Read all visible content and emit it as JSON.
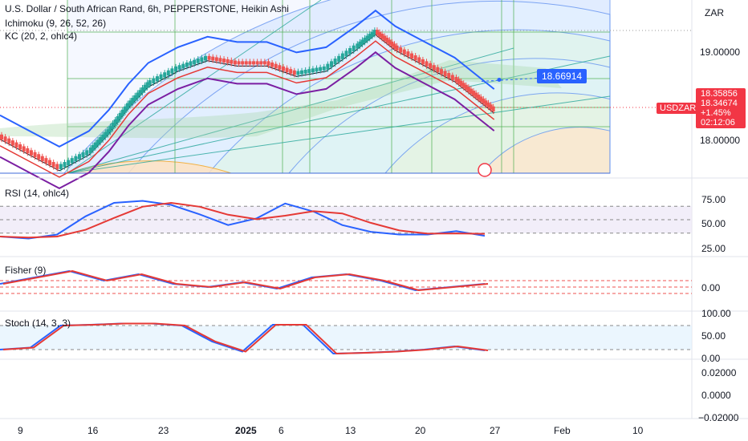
{
  "header": {
    "title": "U.S. Dollar / South African Rand, 6h, PEPPERSTONE, Heikin Ashi",
    "ichimoku_label": "Ichimoku (9, 26, 52, 26)",
    "kc_label": "KC (20, 2, ohlc4)"
  },
  "price_axis": {
    "currency": "ZAR",
    "ticks": [
      "19.00000",
      "18.00000"
    ],
    "symbol_tag": "USDZAR",
    "price_tag": {
      "bid": "18.35856",
      "last": "18.34674",
      "change": "+1.45%",
      "countdown": "02:12:06"
    },
    "target_label": "18.66914"
  },
  "panes": {
    "rsi": {
      "label": "RSI (14, ohlc4)",
      "ticks": [
        "75.00",
        "50.00",
        "25.00"
      ]
    },
    "fisher": {
      "label": "Fisher (9)",
      "ticks": [
        "0.00"
      ]
    },
    "stoch": {
      "label": "Stoch (14, 3, 3)",
      "ticks": [
        "100.00",
        "50.00",
        "0.00"
      ]
    },
    "extra": {
      "ticks": [
        "0.02000",
        "0.0000",
        "−0.02000"
      ]
    }
  },
  "time_axis": {
    "ticks": [
      "9",
      "16",
      "23",
      "2025",
      "6",
      "13",
      "20",
      "27",
      "Feb",
      "10"
    ]
  },
  "colors": {
    "ha_up": "#26a69a",
    "ha_down": "#ef5350",
    "kc_upper": "#2962ff",
    "kc_lower": "#7b1fa2",
    "kc_basis": "#131722",
    "conversion": "#e53935",
    "rsi_line": "#2962ff",
    "rsi_ma": "#e53935",
    "price_tag": "#f23645",
    "target_tag": "#2962ff"
  },
  "chart_data": {
    "type": "candlestick",
    "title": "U.S. Dollar / South African Rand, 6h, PEPPERSTONE, Heikin Ashi",
    "y_unit": "ZAR",
    "ylim_main": [
      17.7,
      19.4
    ],
    "price_series": [
      {
        "date": "2024-12-06",
        "close": 18.1
      },
      {
        "date": "2024-12-09",
        "close": 17.95
      },
      {
        "date": "2024-12-12",
        "close": 17.8
      },
      {
        "date": "2024-12-15",
        "close": 17.95
      },
      {
        "date": "2024-12-17",
        "close": 18.15
      },
      {
        "date": "2024-12-19",
        "close": 18.4
      },
      {
        "date": "2024-12-21",
        "close": 18.6
      },
      {
        "date": "2024-12-24",
        "close": 18.75
      },
      {
        "date": "2024-12-27",
        "close": 18.85
      },
      {
        "date": "2024-12-30",
        "close": 18.8
      },
      {
        "date": "2025-01-02",
        "close": 18.8
      },
      {
        "date": "2025-01-05",
        "close": 18.7
      },
      {
        "date": "2025-01-08",
        "close": 18.75
      },
      {
        "date": "2025-01-11",
        "close": 18.95
      },
      {
        "date": "2025-01-13",
        "close": 19.1
      },
      {
        "date": "2025-01-15",
        "close": 18.95
      },
      {
        "date": "2025-01-18",
        "close": 18.8
      },
      {
        "date": "2025-01-21",
        "close": 18.65
      },
      {
        "date": "2025-01-23",
        "close": 18.5
      },
      {
        "date": "2025-01-25",
        "close": 18.35
      }
    ],
    "current_price": 18.34674,
    "target_price": 18.66914,
    "rsi": {
      "ylim": [
        0,
        100
      ],
      "levels": [
        70,
        50,
        30
      ],
      "values": [
        25,
        22,
        28,
        55,
        75,
        78,
        72,
        58,
        42,
        52,
        74,
        62,
        42,
        32,
        28,
        28,
        33,
        26
      ]
    },
    "fisher": {
      "levels": [
        0.0
      ]
    },
    "stoch": {
      "ylim": [
        0,
        100
      ],
      "levels": [
        80,
        20
      ],
      "values": [
        20,
        25,
        80,
        82,
        85,
        85,
        80,
        40,
        15,
        82,
        82,
        10,
        12,
        15,
        20,
        28,
        18
      ]
    }
  }
}
